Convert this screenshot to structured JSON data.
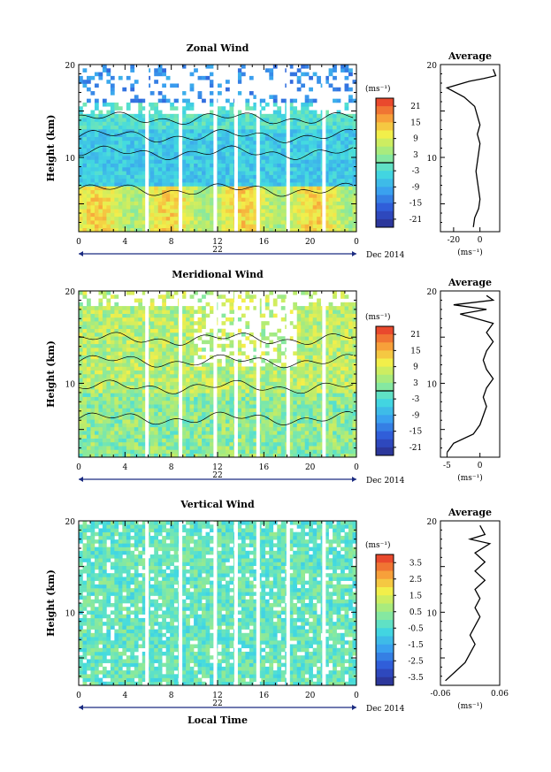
{
  "chart_data": [
    {
      "type": "heatmap",
      "title": "Zonal Wind",
      "ylabel": "Height (km)",
      "xlabel": "",
      "xticks": [
        "0",
        "4",
        "8",
        "12",
        "16",
        "20",
        "0"
      ],
      "xlim": [
        0,
        24
      ],
      "yticks": [
        "10",
        "20"
      ],
      "ylim": [
        2,
        20
      ],
      "date_label": "22",
      "month_label": "Dec 2014",
      "colorbar": {
        "unit": "(ms⁻¹)",
        "ticks": [
          "21",
          "15",
          "9",
          "3",
          "-3",
          "-9",
          "-15",
          "-21"
        ],
        "range": [
          -24,
          24
        ]
      },
      "profile": {
        "title": "Average",
        "xlabel": "(ms⁻¹)",
        "xticks": [
          "-20",
          "0"
        ],
        "xlim": [
          -30,
          15
        ],
        "yticks": [
          "10",
          "20"
        ],
        "points": [
          [
            -5,
            2.5
          ],
          [
            -4,
            3.5
          ],
          [
            -1,
            4.5
          ],
          [
            0,
            5.5
          ],
          [
            -1,
            6.5
          ],
          [
            -2,
            7.5
          ],
          [
            -3,
            8.5
          ],
          [
            -2,
            9.5
          ],
          [
            -1,
            10.5
          ],
          [
            0,
            11.5
          ],
          [
            -2,
            12.5
          ],
          [
            0,
            13.5
          ],
          [
            -2,
            14.5
          ],
          [
            -4,
            15.5
          ],
          [
            -12,
            16.5
          ],
          [
            -25,
            17.5
          ],
          [
            -8,
            18.2
          ],
          [
            3,
            18.5
          ],
          [
            12,
            18.8
          ],
          [
            10,
            19.5
          ]
        ]
      }
    },
    {
      "type": "heatmap",
      "title": "Meridional Wind",
      "ylabel": "Height (km)",
      "xlabel": "",
      "xticks": [
        "0",
        "4",
        "8",
        "12",
        "16",
        "20",
        "0"
      ],
      "xlim": [
        0,
        24
      ],
      "yticks": [
        "10",
        "20"
      ],
      "ylim": [
        2,
        20
      ],
      "date_label": "22",
      "month_label": "Dec 2014",
      "colorbar": {
        "unit": "(ms⁻¹)",
        "ticks": [
          "21",
          "15",
          "9",
          "3",
          "-3",
          "-9",
          "-15",
          "-21"
        ],
        "range": [
          -24,
          24
        ]
      },
      "profile": {
        "title": "Average",
        "xlabel": "(ms⁻¹)",
        "xticks": [
          "-5",
          "0"
        ],
        "xlim": [
          -6,
          3
        ],
        "yticks": [
          "10",
          "20"
        ],
        "points": [
          [
            -5,
            2.5
          ],
          [
            -4,
            3.5
          ],
          [
            -1,
            4.5
          ],
          [
            0,
            5.5
          ],
          [
            0.5,
            6.5
          ],
          [
            1,
            7.5
          ],
          [
            0.5,
            8.5
          ],
          [
            1,
            9.5
          ],
          [
            2,
            10.5
          ],
          [
            1,
            11.5
          ],
          [
            0.5,
            12.5
          ],
          [
            1,
            13.5
          ],
          [
            2,
            14.5
          ],
          [
            1,
            15.5
          ],
          [
            2,
            16.5
          ],
          [
            -3,
            17.5
          ],
          [
            1,
            18
          ],
          [
            -4,
            18.5
          ],
          [
            2,
            19
          ],
          [
            1,
            19.5
          ]
        ]
      }
    },
    {
      "type": "heatmap",
      "title": "Vertical Wind",
      "ylabel": "Height (km)",
      "xlabel": "Local Time",
      "xticks": [
        "0",
        "4",
        "8",
        "12",
        "16",
        "20",
        "0"
      ],
      "xlim": [
        0,
        24
      ],
      "yticks": [
        "10",
        "20"
      ],
      "ylim": [
        2,
        20
      ],
      "date_label": "22",
      "month_label": "Dec 2014",
      "colorbar": {
        "unit": "(ms⁻¹)",
        "ticks": [
          "3.5",
          "2.5",
          "1.5",
          "0.5",
          "-0.5",
          "-1.5",
          "-2.5",
          "-3.5"
        ],
        "range": [
          -4,
          4
        ]
      },
      "profile": {
        "title": "Average",
        "xlabel": "(ms⁻¹)",
        "xticks": [
          "-0.06",
          "0.06"
        ],
        "xlim": [
          -0.06,
          0.06
        ],
        "yticks": [
          "10",
          "20"
        ],
        "points": [
          [
            -0.05,
            2.5
          ],
          [
            -0.03,
            3.5
          ],
          [
            -0.01,
            4.5
          ],
          [
            0.0,
            5.5
          ],
          [
            0.01,
            6.5
          ],
          [
            0.0,
            7.5
          ],
          [
            0.01,
            8.5
          ],
          [
            0.02,
            9.5
          ],
          [
            0.01,
            10.5
          ],
          [
            0.02,
            11.5
          ],
          [
            0.01,
            12.5
          ],
          [
            0.03,
            13.5
          ],
          [
            0.01,
            14.5
          ],
          [
            0.03,
            15.5
          ],
          [
            0.01,
            16.5
          ],
          [
            0.04,
            17.5
          ],
          [
            0.0,
            18
          ],
          [
            0.03,
            18.5
          ],
          [
            0.02,
            19.5
          ]
        ]
      }
    }
  ]
}
